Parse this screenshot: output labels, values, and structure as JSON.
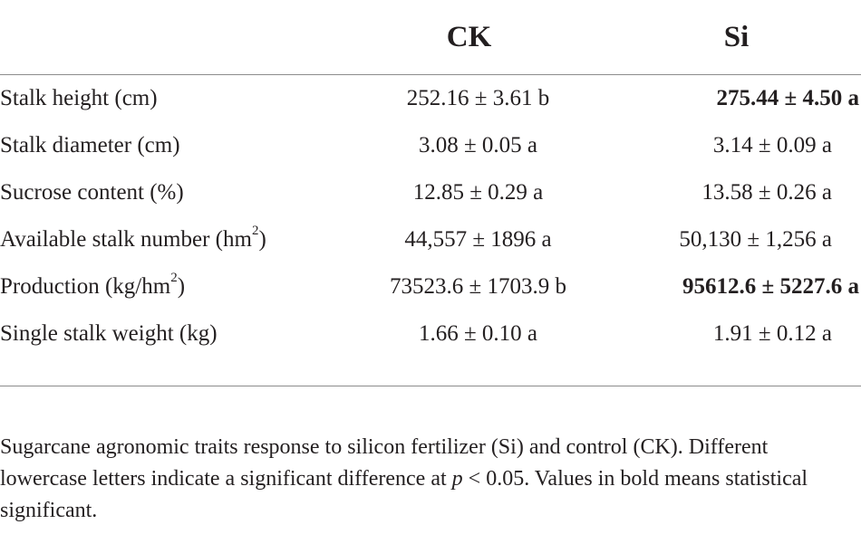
{
  "table": {
    "headers": [
      "",
      "CK",
      "Si"
    ],
    "rows": [
      {
        "label": "Stalk height (cm)",
        "label_sup": "",
        "label_suffix": "",
        "ck": "252.16 ± 3.61 b",
        "si": "275.44 ± 4.50 a",
        "si_bold": true
      },
      {
        "label": "Stalk diameter (cm)",
        "label_sup": "",
        "label_suffix": "",
        "ck": "3.08 ± 0.05 a",
        "si": "3.14 ± 0.09 a",
        "si_bold": false
      },
      {
        "label": "Sucrose content (%)",
        "label_sup": "",
        "label_suffix": "",
        "ck": "12.85 ± 0.29 a",
        "si": "13.58 ± 0.26 a",
        "si_bold": false
      },
      {
        "label": "Available stalk number (hm",
        "label_sup": "2",
        "label_suffix": ")",
        "ck": "44,557 ± 1896 a",
        "si": "50,130 ± 1,256 a",
        "si_bold": false
      },
      {
        "label": "Production (kg/hm",
        "label_sup": "2",
        "label_suffix": ")",
        "ck": "73523.6 ± 1703.9 b",
        "si": "95612.6 ± 5227.6 a",
        "si_bold": true
      },
      {
        "label": "Single stalk weight (kg)",
        "label_sup": "",
        "label_suffix": "",
        "ck": "1.66 ± 0.10 a",
        "si": "1.91 ± 0.12 a",
        "si_bold": false
      }
    ]
  },
  "caption": {
    "part1": "Sugarcane agronomic traits response to silicon fertilizer (Si) and control (CK). Different lowercase letters indicate a significant difference at ",
    "p_symbol": "p",
    "part2": " < 0.05. Values in bold means statistical significant."
  }
}
